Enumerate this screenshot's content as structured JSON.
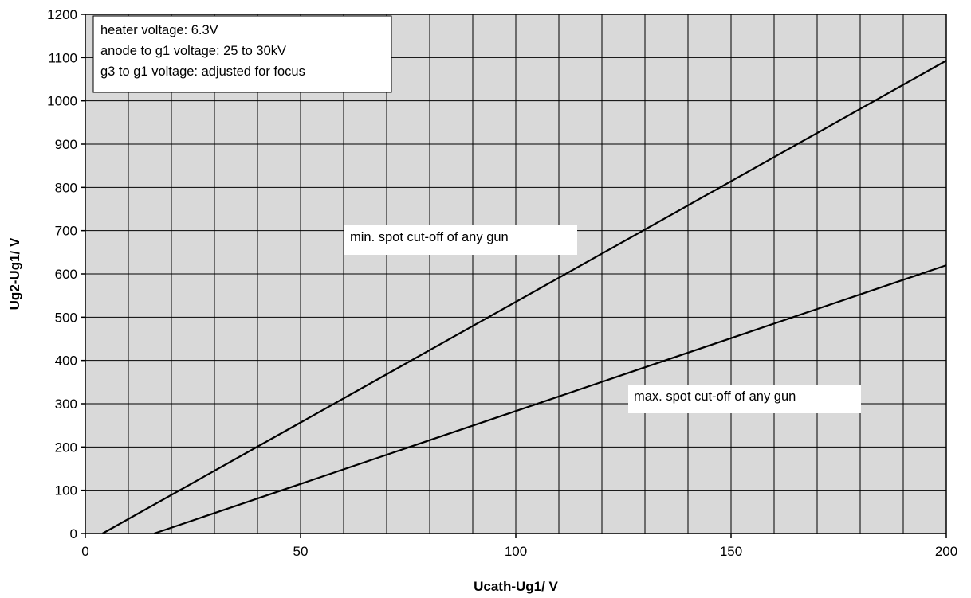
{
  "chart_data": {
    "type": "line",
    "title": "",
    "xlabel": "Ucath-Ug1/ V",
    "ylabel": "Ug2-Ug1/ V",
    "xlim": [
      0,
      200
    ],
    "ylim": [
      0,
      1200
    ],
    "x_ticks": [
      0,
      50,
      100,
      150,
      200
    ],
    "x_tick_labels": [
      "0",
      "50",
      "100",
      "150",
      "200"
    ],
    "x_minor_step": 10,
    "y_ticks": [
      0,
      100,
      200,
      300,
      400,
      500,
      600,
      700,
      800,
      900,
      1000,
      1100,
      1200
    ],
    "y_tick_labels": [
      "0",
      "100",
      "200",
      "300",
      "400",
      "500",
      "600",
      "700",
      "800",
      "900",
      "1000",
      "1100",
      "1200"
    ],
    "grid": true,
    "plot_background": "#d9d9d9",
    "line_color": "#000000",
    "series": [
      {
        "name": "min. spot cut-off of any gun",
        "x": [
          4,
          200
        ],
        "y": [
          0,
          1093
        ]
      },
      {
        "name": "max. spot cut-off of any gun",
        "x": [
          16,
          200
        ],
        "y": [
          0,
          620
        ]
      }
    ],
    "info_box": {
      "lines": [
        "heater voltage: 6.3V",
        "anode to g1 voltage: 25 to 30kV",
        "g3 to g1 voltage: adjusted for focus"
      ]
    }
  }
}
